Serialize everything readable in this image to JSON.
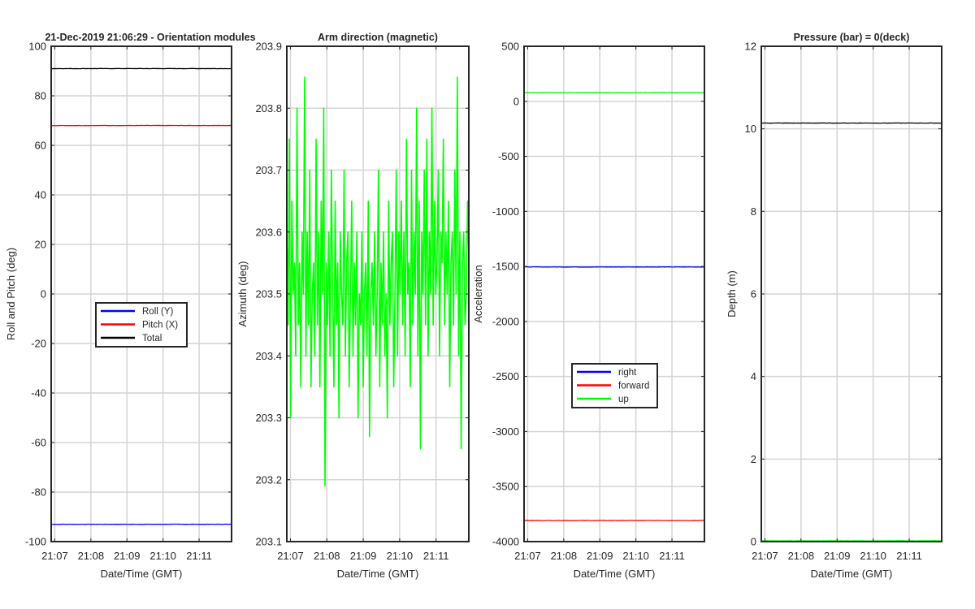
{
  "chart_data": [
    {
      "type": "line",
      "title": "21-Dec-2019 21:06:29 - Orientation modules",
      "xlabel": "Date/Time (GMT)",
      "ylabel": "Roll and Pitch (deg)",
      "xlim": [
        "21:06:54",
        "21:11:54"
      ],
      "xticks": [
        "21:07",
        "21:08",
        "21:09",
        "21:10",
        "21:11"
      ],
      "ylim": [
        -100,
        100
      ],
      "yticks": [
        "-100",
        "-80",
        "-60",
        "-40",
        "-20",
        "0",
        "20",
        "40",
        "60",
        "80",
        "100"
      ],
      "grid": true,
      "legend": "center",
      "series": [
        {
          "name": "Roll (Y)",
          "color": "#0000ff",
          "values": [
            -93
          ]
        },
        {
          "name": "Pitch (X)",
          "color": "#ff0000",
          "values": [
            68
          ]
        },
        {
          "name": "Total",
          "color": "#000000",
          "values": [
            91
          ]
        }
      ]
    },
    {
      "type": "line",
      "title": "Arm direction (magnetic)",
      "xlabel": "Date/Time (GMT)",
      "ylabel": "Azimuth (deg)",
      "xlim": [
        "21:06:54",
        "21:11:54"
      ],
      "xticks": [
        "21:07",
        "21:08",
        "21:09",
        "21:10",
        "21:11"
      ],
      "ylim": [
        203.1,
        203.9
      ],
      "yticks": [
        "203.1",
        "203.2",
        "203.3",
        "203.4",
        "203.5",
        "203.6",
        "203.7",
        "203.8",
        "203.9"
      ],
      "grid": true,
      "series": [
        {
          "color": "#00ff00",
          "values": [
            203.6,
            203.45,
            203.75,
            203.3,
            203.65,
            203.5,
            203.55,
            203.4,
            203.8,
            203.45,
            203.55,
            203.35,
            203.6,
            203.5,
            203.85,
            203.4,
            203.6,
            203.45,
            203.7,
            203.35,
            203.5,
            203.55,
            203.4,
            203.75,
            203.45,
            203.6,
            203.35,
            203.65,
            203.5,
            203.8,
            203.19,
            203.55,
            203.45,
            203.6,
            203.4,
            203.7,
            203.5,
            203.35,
            203.65,
            203.45,
            203.55,
            203.3,
            203.6,
            203.5,
            203.45,
            203.7,
            203.4,
            203.55,
            203.6,
            203.35,
            203.5,
            203.65,
            203.4,
            203.55,
            203.45,
            203.6,
            203.3,
            203.5,
            203.45,
            203.6,
            203.35,
            203.5,
            203.55,
            203.4,
            203.65,
            203.27,
            203.5,
            203.55,
            203.45,
            203.6,
            203.4,
            203.5,
            203.7,
            203.35,
            203.55,
            203.45,
            203.6,
            203.4,
            203.5,
            203.3,
            203.65,
            203.45,
            203.55,
            203.6,
            203.35,
            203.5,
            203.7,
            203.4,
            203.6,
            203.5,
            203.65,
            203.45,
            203.6,
            203.4,
            203.75,
            203.5,
            203.55,
            203.35,
            203.7,
            203.45,
            203.6,
            203.5,
            203.8,
            203.4,
            203.65,
            203.25,
            203.6,
            203.5,
            203.7,
            203.45,
            203.75,
            203.4,
            203.6,
            203.5,
            203.8,
            203.45,
            203.65,
            203.5,
            203.55,
            203.7,
            203.4,
            203.6,
            203.55,
            203.75,
            203.45,
            203.6,
            203.5,
            203.65,
            203.35,
            203.55,
            203.6,
            203.45,
            203.7,
            203.5,
            203.85,
            203.4,
            203.6,
            203.25,
            203.55,
            203.6,
            203.45,
            203.5,
            203.65,
            203.55
          ]
        }
      ]
    },
    {
      "type": "line",
      "xlabel": "Date/Time (GMT)",
      "ylabel": "Acceleration",
      "xlim": [
        "21:06:54",
        "21:11:54"
      ],
      "xticks": [
        "21:07",
        "21:08",
        "21:09",
        "21:10",
        "21:11"
      ],
      "ylim": [
        -4000,
        500
      ],
      "yticks": [
        "-4000",
        "-3500",
        "-3000",
        "-2500",
        "-2000",
        "-1500",
        "-1000",
        "-500",
        "0",
        "500"
      ],
      "grid": true,
      "legend": "center-bottom",
      "series": [
        {
          "name": "right",
          "color": "#0000ff",
          "values": [
            -1505
          ]
        },
        {
          "name": "forward",
          "color": "#ff0000",
          "values": [
            -3808
          ]
        },
        {
          "name": "up",
          "color": "#00ff00",
          "values": [
            80
          ]
        }
      ]
    },
    {
      "type": "line",
      "title": "Pressure (bar) = 0(deck)",
      "xlabel": "Date/Time (GMT)",
      "ylabel": "Depth (m)",
      "xlim": [
        "21:06:54",
        "21:11:54"
      ],
      "xticks": [
        "21:07",
        "21:08",
        "21:09",
        "21:10",
        "21:11"
      ],
      "ylim": [
        0,
        12
      ],
      "yticks": [
        "0",
        "2",
        "4",
        "6",
        "8",
        "10",
        "12"
      ],
      "grid": true,
      "series": [
        {
          "color": "#000000",
          "values": [
            10.14
          ]
        },
        {
          "color": "#00ff00",
          "values": [
            0.02
          ]
        }
      ]
    }
  ]
}
